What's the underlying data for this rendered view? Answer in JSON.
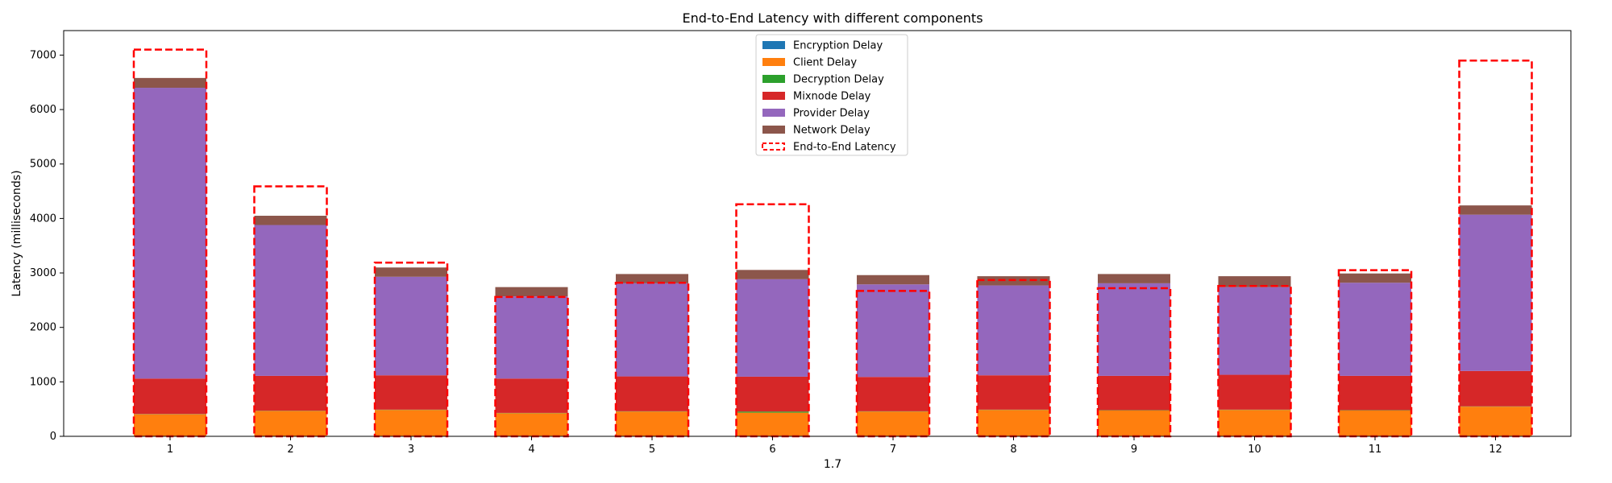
{
  "chart_data": {
    "type": "bar",
    "title": "End-to-End Latency with different components",
    "xlabel": "1.7",
    "ylabel": "Latency (milliseconds)",
    "categories": [
      "1",
      "2",
      "3",
      "4",
      "5",
      "6",
      "7",
      "8",
      "9",
      "10",
      "11",
      "12"
    ],
    "ylim": [
      0,
      7450
    ],
    "yticks": [
      "0",
      "1000",
      "2000",
      "3000",
      "4000",
      "5000",
      "6000",
      "7000"
    ],
    "grid": false,
    "legend_position": "top-center",
    "stacked": true,
    "series": [
      {
        "name": "Encryption Delay",
        "color": "#1f77b4",
        "values": [
          5,
          5,
          5,
          5,
          5,
          5,
          5,
          5,
          5,
          5,
          5,
          5
        ]
      },
      {
        "name": "Client Delay",
        "color": "#ff7f0e",
        "values": [
          400,
          460,
          480,
          420,
          450,
          430,
          450,
          480,
          470,
          480,
          470,
          540
        ]
      },
      {
        "name": "Decryption Delay",
        "color": "#2ca02c",
        "values": [
          5,
          5,
          5,
          5,
          5,
          20,
          5,
          5,
          5,
          5,
          5,
          5
        ]
      },
      {
        "name": "Mixnode Delay",
        "color": "#d62728",
        "values": [
          650,
          640,
          630,
          630,
          640,
          640,
          630,
          630,
          630,
          640,
          630,
          650
        ]
      },
      {
        "name": "Provider Delay",
        "color": "#9467bd",
        "values": [
          5340,
          2770,
          1810,
          1510,
          1710,
          1790,
          1700,
          1650,
          1700,
          1610,
          1710,
          2870
        ]
      },
      {
        "name": "Network Delay",
        "color": "#8c564b",
        "values": [
          180,
          170,
          170,
          170,
          170,
          170,
          170,
          170,
          170,
          200,
          170,
          170
        ]
      }
    ],
    "end_to_end": {
      "name": "End-to-End Latency",
      "color": "#ff0000",
      "values": [
        7100,
        4590,
        3190,
        2560,
        2820,
        4260,
        2670,
        2870,
        2720,
        2760,
        3050,
        6900
      ]
    }
  }
}
